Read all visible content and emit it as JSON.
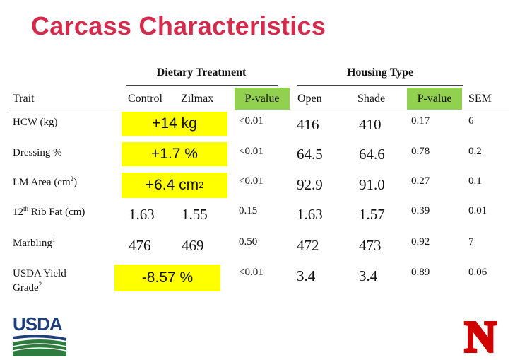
{
  "title": "Carcass Characteristics",
  "groups": {
    "dietary": "Dietary Treatment",
    "housing": "Housing Type"
  },
  "columns": {
    "trait": "Trait",
    "control": "Control",
    "zilmax": "Zilmax",
    "pvalue_diet": "P-value",
    "open": "Open",
    "shade": "Shade",
    "pvalue_housing": "P-value",
    "sem": "SEM"
  },
  "header_highlight_color": "#92d050",
  "highlight_color": "#ffff00",
  "rows": [
    {
      "trait": "HCW (kg)",
      "diet_diff": "+14 kg",
      "diet_p": "<0.01",
      "open": "416",
      "shade": "410",
      "housing_p": "0.17",
      "sem": "6"
    },
    {
      "trait": "Dressing %",
      "diet_diff": "+1.7 %",
      "diet_p": "<0.01",
      "open": "64.5",
      "shade": "64.6",
      "housing_p": "0.78",
      "sem": "0.2"
    },
    {
      "trait": "LM Area (cm",
      "trait_sup": "2",
      "trait_after": ")",
      "diet_diff": "+6.4 cm",
      "diet_diff_sup": "2",
      "diet_p": "<0.01",
      "open": "92.9",
      "shade": "91.0",
      "housing_p": "0.27",
      "sem": "0.1"
    },
    {
      "trait_pre": "12",
      "trait_sup": "th",
      "trait": " Rib Fat (cm)",
      "control": "1.63",
      "zilmax": "1.55",
      "diet_p": "0.15",
      "open": "1.63",
      "shade": "1.57",
      "housing_p": "0.39",
      "sem": "0.01"
    },
    {
      "trait": "Marbling",
      "trait_sup": "1",
      "control": "476",
      "zilmax": "469",
      "diet_p": "0.50",
      "open": "472",
      "shade": "473",
      "housing_p": "0.92",
      "sem": "7"
    },
    {
      "trait": "USDA Yield",
      "trait_line2": "Grade",
      "trait_sup": "2",
      "diet_diff": "-8.57 %",
      "diet_p": "<0.01",
      "open": "3.4",
      "shade": "3.4",
      "housing_p": "0.89",
      "sem": "0.06"
    }
  ],
  "logos": {
    "usda": "USDA",
    "nebraska": "N"
  }
}
